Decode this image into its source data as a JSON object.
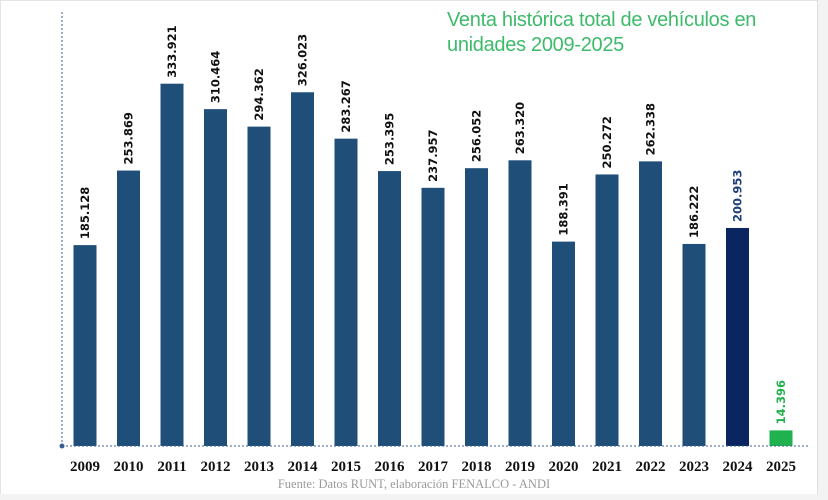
{
  "chart_data": {
    "type": "bar",
    "title": "Venta histórica total de vehículos en unidades 2009-2025",
    "source": "Fuente: Datos RUNT, elaboración FENALCO - ANDI",
    "categories": [
      "2009",
      "2010",
      "2011",
      "2012",
      "2013",
      "2014",
      "2015",
      "2016",
      "2017",
      "2018",
      "2019",
      "2020",
      "2021",
      "2022",
      "2023",
      "2024",
      "2025"
    ],
    "values": [
      185128,
      253869,
      333921,
      310464,
      294362,
      326023,
      283267,
      253395,
      237957,
      256052,
      263320,
      188391,
      250272,
      262338,
      186222,
      200953,
      14396
    ],
    "labels": [
      "185.128",
      "253.869",
      "333.921",
      "310.464",
      "294.362",
      "326.023",
      "283.267",
      "253.395",
      "237.957",
      "256.052",
      "263.320",
      "188.391",
      "250.272",
      "262.338",
      "186.222",
      "200.953",
      "14.396"
    ],
    "ylim": [
      0,
      400000
    ],
    "grid": false,
    "legend": "none",
    "colors": {
      "default_bar": "#1f4e79",
      "highlight_2024_bar": "#0b2560",
      "highlight_2025_bar": "#1fb24f",
      "default_label": "#111111",
      "label_2024": "#1f3f7a",
      "label_2025": "#22b14c",
      "title": "#3dbb6a",
      "axis": "#3a5f8f"
    }
  }
}
